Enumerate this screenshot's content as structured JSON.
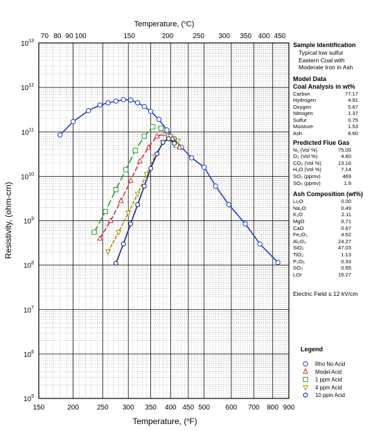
{
  "chart_data": {
    "type": "line",
    "title": "",
    "top_axis_label": "Temperature, (°C)",
    "top_ticks": [
      70,
      80,
      90,
      100,
      150,
      200,
      250,
      300,
      350,
      400,
      450
    ],
    "xlabel": "Temperature, (°F)",
    "ylabel": "Resistivity, (ohm-cm)",
    "x_ticks": [
      150,
      200,
      250,
      300,
      350,
      400,
      450,
      500,
      600,
      700,
      800,
      900
    ],
    "xlim": [
      150,
      900
    ],
    "ylim_log10": [
      5,
      13
    ],
    "y_ticks": [
      "10^5",
      "10^6",
      "10^7",
      "10^8",
      "10^9",
      "10^10",
      "10^11",
      "10^12",
      "10^13"
    ],
    "grid": true,
    "legend_title": "Legend",
    "series": [
      {
        "name": "Rho No Acid",
        "color": "#1f3fbf",
        "marker": "circle",
        "x": [
          180,
          200,
          225,
          245,
          260,
          275,
          290,
          305,
          320,
          335,
          350,
          370,
          390,
          410,
          430,
          460,
          500,
          540,
          590,
          660,
          730,
          830
        ],
        "y": [
          85000000000.0,
          170000000000.0,
          300000000000.0,
          400000000000.0,
          450000000000.0,
          490000000000.0,
          530000000000.0,
          520000000000.0,
          450000000000.0,
          370000000000.0,
          290000000000.0,
          190000000000.0,
          110000000000.0,
          70000000000.0,
          45000000000.0,
          26000000000.0,
          16000000000.0,
          6000000000.0,
          2300000000.0,
          850000000.0,
          300000000.0,
          115000000.0
        ]
      },
      {
        "name": "Model Acid",
        "color": "#d03030",
        "marker": "triangle",
        "x": [
          245,
          265,
          285,
          305,
          325,
          345,
          365,
          385,
          405,
          425
        ],
        "y": [
          400000000.0,
          1000000000.0,
          2800000000.0,
          8000000000.0,
          22000000000.0,
          45000000000.0,
          80000000000.0,
          90000000000.0,
          70000000000.0,
          45000000000.0
        ]
      },
      {
        "name": "1 ppm Acid",
        "color": "#2a9a2a",
        "marker": "square",
        "x": [
          235,
          255,
          275,
          295,
          315,
          335,
          355,
          375,
          395,
          415
        ],
        "y": [
          550000000.0,
          1600000000.0,
          5000000000.0,
          14000000000.0,
          38000000000.0,
          80000000000.0,
          130000000000.0,
          120000000000.0,
          80000000000.0,
          50000000000.0
        ]
      },
      {
        "name": "4 ppm Acid",
        "color": "#a08a00",
        "marker": "triangle-down",
        "x": [
          260,
          280,
          300,
          320,
          340,
          360,
          380,
          400,
          420
        ],
        "y": [
          200000000.0,
          550000000.0,
          1500000000.0,
          4000000000.0,
          11000000000.0,
          28000000000.0,
          58000000000.0,
          80000000000.0,
          62000000000.0
        ]
      },
      {
        "name": "10 ppm Acid",
        "color": "#15237f",
        "marker": "hexagon",
        "x": [
          275,
          290,
          305,
          320,
          335,
          350,
          365,
          380,
          395,
          410
        ],
        "y": [
          110000000.0,
          300000000.0,
          850000000.0,
          2300000000.0,
          6000000000.0,
          15000000000.0,
          32000000000.0,
          58000000000.0,
          70000000000.0,
          55000000000.0
        ]
      }
    ]
  },
  "panel": {
    "sample_heading": "Sample Identification",
    "sample_lines": [
      "Typical low sulfur",
      "Eastern Coal with",
      "Moderate Iron in Ash"
    ],
    "model_heading": "Model Data",
    "coal_heading": "Coal Analysis in wt%",
    "coal": [
      {
        "k": "Carbon",
        "v": "77.17"
      },
      {
        "k": "Hydrogen",
        "v": "4.91"
      },
      {
        "k": "Oxygen",
        "v": "5.67"
      },
      {
        "k": "Nitrogen",
        "v": "1.37"
      },
      {
        "k": "Sulfur",
        "v": "0.75"
      },
      {
        "k": "Moisture",
        "v": "1.53"
      },
      {
        "k": "Ash",
        "v": "8.60"
      }
    ],
    "flue_heading": "Predicted Flue Gas",
    "flue": [
      {
        "k": "N₂ (Vol %)",
        "v": "75.05"
      },
      {
        "k": "O₂ (Vol %)",
        "v": "4.60"
      },
      {
        "k": "CO₂ (Vol %)",
        "v": "13.16"
      },
      {
        "k": "H₂O (Vol %)",
        "v": "7.14"
      },
      {
        "k": "SO₂ (ppmv)",
        "v": "469"
      },
      {
        "k": "SO₃ (ppmv)",
        "v": "1.9"
      }
    ],
    "ash_heading": "Ash Composition (wt%)",
    "ash": [
      {
        "k": "Li₂O",
        "v": "0.00"
      },
      {
        "k": "Na₂O",
        "v": "0.49"
      },
      {
        "k": "K₂O",
        "v": "2.11"
      },
      {
        "k": "MgO",
        "v": "0.71"
      },
      {
        "k": "CaO",
        "v": "0.67"
      },
      {
        "k": "Fe₂O₃",
        "v": "4.52"
      },
      {
        "k": "Al₂O₃",
        "v": "24.27"
      },
      {
        "k": "SiO₂",
        "v": "47.03"
      },
      {
        "k": "TiO₂",
        "v": "1.13"
      },
      {
        "k": "P₂O₅",
        "v": "0.33"
      },
      {
        "k": "SO₃",
        "v": "0.65"
      },
      {
        "k": "LOI",
        "v": "15.27"
      }
    ],
    "electric_field": "Electric Field ≤ 12 kV/cm"
  }
}
